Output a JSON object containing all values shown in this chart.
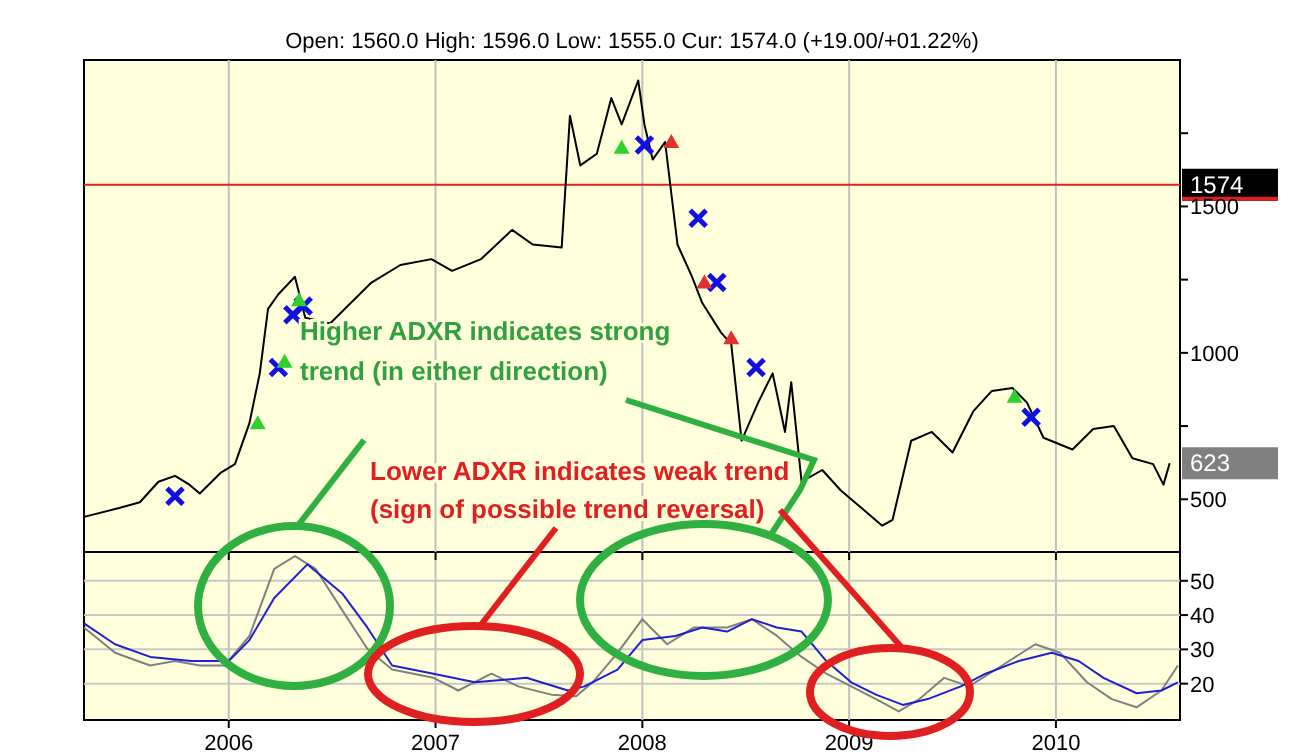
{
  "chart_data": [
    {
      "type": "line",
      "subtitle": "Open: 1560.0 High: 1596.0 Low: 1555.0 Cur: 1574.0 (+19.00/+01.22%)",
      "xlim": [
        2005.3,
        2010.6
      ],
      "xticks": [
        2006,
        2007,
        2008,
        2009,
        2010
      ],
      "ylim": [
        320,
        2000
      ],
      "yticks": [
        500,
        {
          "value": 750,
          "label": null
        },
        1000,
        {
          "value": 1250,
          "label": null
        },
        1500,
        {
          "value": 1750,
          "label": null
        }
      ],
      "grid": "x",
      "tick_labels": "y",
      "series": [
        {
          "color": "#000000",
          "x": [
            2005.3,
            2005.47,
            2005.57,
            2005.66,
            2005.74,
            2005.81,
            2005.86,
            2005.96,
            2006.03,
            2006.1,
            2006.15,
            2006.19,
            2006.24,
            2006.32,
            2006.37,
            2006.49,
            2006.59,
            2006.69,
            2006.83,
            2006.98,
            2007.08,
            2007.22,
            2007.37,
            2007.47,
            2007.61,
            2007.65,
            2007.7,
            2007.78,
            2007.85,
            2007.9,
            2007.98,
            2008.01,
            2008.05,
            2008.11,
            2008.17,
            2008.24,
            2008.29,
            2008.38,
            2008.43,
            2008.48,
            2008.56,
            2008.63,
            2008.69,
            2008.72,
            2008.77,
            2008.87,
            2008.96,
            2009.06,
            2009.16,
            2009.21,
            2009.3,
            2009.4,
            2009.5,
            2009.6,
            2009.69,
            2009.79,
            2009.86,
            2009.94,
            2010.08,
            2010.18,
            2010.28,
            2010.37,
            2010.47,
            2010.52,
            2010.55
          ],
          "values": [
            440,
            470,
            490,
            560,
            580,
            550,
            520,
            590,
            620,
            760,
            930,
            1150,
            1200,
            1260,
            1120,
            1100,
            1170,
            1240,
            1300,
            1320,
            1280,
            1320,
            1420,
            1370,
            1360,
            1810,
            1640,
            1680,
            1870,
            1780,
            1930,
            1780,
            1660,
            1720,
            1370,
            1260,
            1170,
            1070,
            1030,
            700,
            830,
            930,
            730,
            900,
            560,
            600,
            530,
            470,
            410,
            430,
            700,
            730,
            660,
            800,
            870,
            880,
            830,
            710,
            670,
            740,
            750,
            640,
            620,
            550,
            623
          ]
        },
        {
          "type": "scatter",
          "marker": "cross",
          "color": "#1010e0",
          "x": [
            2005.74,
            2006.24,
            2006.31,
            2006.36,
            2008.01,
            2008.27,
            2008.36,
            2008.55,
            2009.88
          ],
          "values": [
            510,
            950,
            1130,
            1160,
            1710,
            1460,
            1240,
            950,
            780
          ]
        },
        {
          "type": "scatter",
          "marker": "triangle",
          "color": "#30d030",
          "x": [
            2006.14,
            2006.27,
            2006.34,
            2007.9,
            2009.8
          ],
          "values": [
            760,
            970,
            1180,
            1700,
            850
          ]
        },
        {
          "type": "scatter",
          "marker": "triangle",
          "color": "#e03030",
          "x": [
            2008.14,
            2008.3,
            2008.43
          ],
          "values": [
            1720,
            1240,
            1050
          ]
        }
      ],
      "ref_lines": [
        {
          "axis": "y",
          "value": 1574,
          "label": "1574",
          "color": "#e02020"
        }
      ],
      "annotations": [
        "Higher ADXR indicates strong",
        "trend (in either direction)",
        "Lower ADXR indicates weak trend",
        "(sign of possible trend reversal)",
        "623"
      ]
    },
    {
      "type": "line",
      "xlim": [
        2005.3,
        2010.6
      ],
      "xticks": [
        2006,
        2007,
        2008,
        2009,
        2010
      ],
      "ylim": [
        9.4,
        58.4
      ],
      "yticks": [
        20,
        30,
        40,
        50
      ],
      "grid": true,
      "series": [
        {
          "color": "#808080",
          "x": [
            2005.3,
            2005.45,
            2005.62,
            2005.74,
            2005.86,
            2005.98,
            2006.1,
            2006.22,
            2006.32,
            2006.42,
            2006.55,
            2006.67,
            2006.79,
            2006.99,
            2007.11,
            2007.27,
            2007.4,
            2007.56,
            2007.68,
            2007.76,
            2007.88,
            2008.0,
            2008.12,
            2008.25,
            2008.41,
            2008.53,
            2008.65,
            2008.77,
            2008.89,
            2009.01,
            2009.13,
            2009.24,
            2009.34,
            2009.46,
            2009.58,
            2009.74,
            2009.9,
            2010.02,
            2010.15,
            2010.27,
            2010.39,
            2010.51,
            2010.59
          ],
          "values": [
            36.4,
            29.0,
            25.3,
            26.6,
            25.3,
            25.3,
            33.9,
            53.5,
            57.2,
            53.5,
            41.3,
            30.2,
            24.1,
            21.7,
            18.0,
            22.9,
            19.2,
            16.8,
            16.3,
            20.4,
            29.0,
            38.8,
            31.5,
            36.4,
            36.4,
            38.8,
            34.0,
            27.8,
            22.9,
            19.2,
            15.5,
            11.9,
            15.5,
            21.7,
            19.2,
            25.3,
            31.5,
            29.0,
            20.4,
            15.5,
            13.1,
            18.0,
            25.3
          ]
        },
        {
          "color": "#2020d0",
          "x": [
            2005.3,
            2005.45,
            2005.62,
            2005.82,
            2006.0,
            2006.1,
            2006.22,
            2006.38,
            2006.55,
            2006.67,
            2006.79,
            2006.99,
            2007.19,
            2007.44,
            2007.64,
            2007.72,
            2007.88,
            2008.0,
            2008.16,
            2008.29,
            2008.41,
            2008.53,
            2008.65,
            2008.77,
            2008.89,
            2009.01,
            2009.13,
            2009.26,
            2009.38,
            2009.54,
            2009.66,
            2009.82,
            2009.98,
            2010.11,
            2010.23,
            2010.39,
            2010.51,
            2010.59
          ],
          "values": [
            37.6,
            31.5,
            27.8,
            26.6,
            26.6,
            32.7,
            45.0,
            54.8,
            46.2,
            36.4,
            25.3,
            22.9,
            20.4,
            21.7,
            18.0,
            19.2,
            24.1,
            32.7,
            33.9,
            36.4,
            35.2,
            38.8,
            36.4,
            35.2,
            26.6,
            20.4,
            16.8,
            13.8,
            15.5,
            19.2,
            22.9,
            26.6,
            29.0,
            26.6,
            21.7,
            17.2,
            18.0,
            20.4
          ]
        }
      ]
    }
  ]
}
